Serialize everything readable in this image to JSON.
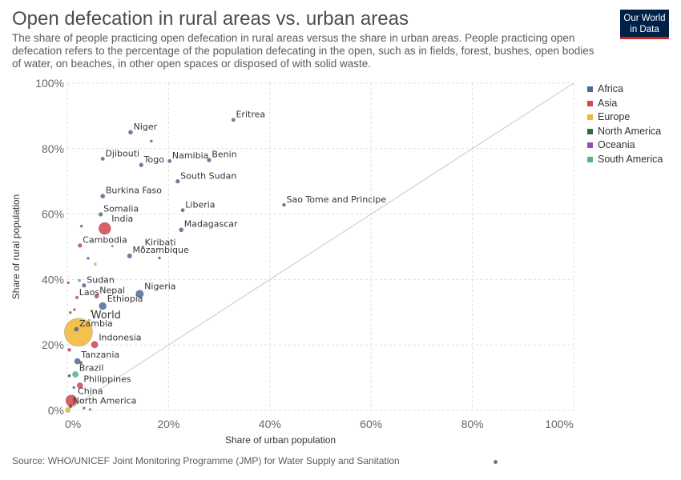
{
  "header": {
    "title": "Open defecation in rural areas vs. urban areas",
    "subtitle": "The share of people practicing open defecation in rural areas versus the share in urban areas. People practicing open defecation refers to the percentage of the population defecating in the open, such as in fields, forest, bushes, open bodies of water, on beaches, in other open spaces or disposed of with solid waste.",
    "logo_line1": "Our World",
    "logo_line2": "in Data"
  },
  "footer": {
    "source": "Source: WHO/UNICEF Joint Monitoring Programme (JMP) for Water Supply and Sanitation"
  },
  "colors": {
    "Africa": "#4c6a9c",
    "Asia": "#d4444e",
    "Europe": "#f2b632",
    "North America": "#2e6b3f",
    "Oceania": "#9e4bb0",
    "South America": "#49b97f",
    "grid": "#dddddd",
    "diagonal": "#c8c8c8"
  },
  "chart_data": {
    "type": "scatter",
    "xlabel": "Share of urban population",
    "ylabel": "Share of rural population",
    "xlim": [
      0,
      100
    ],
    "ylim": [
      0,
      100
    ],
    "x_ticks": [
      "0%",
      "20%",
      "40%",
      "60%",
      "80%",
      "100%"
    ],
    "y_ticks": [
      "0%",
      "20%",
      "40%",
      "60%",
      "80%",
      "100%"
    ],
    "grid": true,
    "legend_position": "right",
    "legend": [
      "Africa",
      "Asia",
      "Europe",
      "North America",
      "Oceania",
      "South America"
    ],
    "points": [
      {
        "label": "Eritrea",
        "region": "Africa",
        "x": 32.8,
        "y": 88.8,
        "size": 2.2
      },
      {
        "label": "Niger",
        "region": "Africa",
        "x": 12.5,
        "y": 85.0,
        "size": 2.6
      },
      {
        "label": "",
        "region": "Africa",
        "x": 16.6,
        "y": 82.3,
        "size": 1.5
      },
      {
        "label": "Djibouti",
        "region": "Africa",
        "x": 7.0,
        "y": 76.9,
        "size": 2.2
      },
      {
        "label": "Togo",
        "region": "Africa",
        "x": 14.6,
        "y": 75.0,
        "size": 2.4
      },
      {
        "label": "Namibia",
        "region": "Africa",
        "x": 20.2,
        "y": 76.2,
        "size": 2.2
      },
      {
        "label": "Benin",
        "region": "Africa",
        "x": 28.0,
        "y": 76.5,
        "size": 2.4
      },
      {
        "label": "South Sudan",
        "region": "Africa",
        "x": 21.8,
        "y": 70.0,
        "size": 2.4
      },
      {
        "label": "Burkina Faso",
        "region": "Africa",
        "x": 7.0,
        "y": 65.5,
        "size": 2.6
      },
      {
        "label": "Sao Tome and Principe",
        "region": "Africa",
        "x": 42.8,
        "y": 62.8,
        "size": 2.0
      },
      {
        "label": "Liberia",
        "region": "Africa",
        "x": 22.8,
        "y": 61.2,
        "size": 2.2
      },
      {
        "label": "Somalia",
        "region": "Africa",
        "x": 6.6,
        "y": 59.9,
        "size": 2.4
      },
      {
        "label": "India",
        "region": "Asia",
        "x": 7.4,
        "y": 55.6,
        "size": 7.5
      },
      {
        "label": "",
        "region": "Africa",
        "x": 2.8,
        "y": 56.3,
        "size": 1.5
      },
      {
        "label": "Madagascar",
        "region": "Africa",
        "x": 22.5,
        "y": 55.2,
        "size": 2.6
      },
      {
        "label": "Cambodia",
        "region": "Asia",
        "x": 2.5,
        "y": 50.4,
        "size": 2.4
      },
      {
        "label": "Kiribati",
        "region": "Oceania",
        "x": 14.9,
        "y": 49.9,
        "size": 1.5
      },
      {
        "label": "",
        "region": "Oceania",
        "x": 8.9,
        "y": 50.2,
        "size": 1.2
      },
      {
        "label": "Mozambique",
        "region": "Africa",
        "x": 12.3,
        "y": 47.2,
        "size": 2.8
      },
      {
        "label": "",
        "region": "Africa",
        "x": 18.2,
        "y": 46.6,
        "size": 1.5
      },
      {
        "label": "",
        "region": "Africa",
        "x": 4.1,
        "y": 46.5,
        "size": 1.5
      },
      {
        "label": "",
        "region": "Europe",
        "x": 5.5,
        "y": 44.7,
        "size": 1.5
      },
      {
        "label": "",
        "region": "Asia",
        "x": 0.2,
        "y": 39.0,
        "size": 1.5
      },
      {
        "label": "Sudan",
        "region": "Africa",
        "x": 3.3,
        "y": 38.2,
        "size": 2.4
      },
      {
        "label": "",
        "region": "South America",
        "x": 2.4,
        "y": 39.7,
        "size": 1.5
      },
      {
        "label": "Nigeria",
        "region": "Africa",
        "x": 14.3,
        "y": 35.6,
        "size": 4.8
      },
      {
        "label": "Laos",
        "region": "Asia",
        "x": 1.9,
        "y": 34.5,
        "size": 1.8
      },
      {
        "label": "Nepal",
        "region": "Asia",
        "x": 5.8,
        "y": 34.9,
        "size": 2.6
      },
      {
        "label": "Ethiopia",
        "region": "Africa",
        "x": 7.0,
        "y": 31.9,
        "size": 4.5
      },
      {
        "label": "",
        "region": "Asia",
        "x": 0.6,
        "y": 29.9,
        "size": 1.5
      },
      {
        "label": "",
        "region": "Asia",
        "x": 1.4,
        "y": 30.8,
        "size": 1.5
      },
      {
        "label": "",
        "region": "Europe",
        "x": 4.8,
        "y": 30.4,
        "size": 1.5
      },
      {
        "label": "World",
        "region": "Europe",
        "x": 4.3,
        "y": 27.5,
        "size": 1.5
      },
      {
        "label": "Zambia",
        "region": "Africa",
        "x": 1.8,
        "y": 24.8,
        "size": 2.6
      },
      {
        "label": "",
        "region": "Europe",
        "x": 2.2,
        "y": 23.9,
        "size": 17.5
      },
      {
        "label": "Indonesia",
        "region": "Asia",
        "x": 5.4,
        "y": 20.1,
        "size": 4.2
      },
      {
        "label": "",
        "region": "Asia",
        "x": 0.4,
        "y": 18.5,
        "size": 2.0
      },
      {
        "label": "Tanzania",
        "region": "Africa",
        "x": 2.0,
        "y": 15.0,
        "size": 3.6
      },
      {
        "label": "",
        "region": "Africa",
        "x": 2.7,
        "y": 14.6,
        "size": 1.8
      },
      {
        "label": "Brazil",
        "region": "South America",
        "x": 1.6,
        "y": 11.0,
        "size": 3.6
      },
      {
        "label": "",
        "region": "North America",
        "x": 0.4,
        "y": 10.6,
        "size": 1.6
      },
      {
        "label": "Philippines",
        "region": "Asia",
        "x": 2.5,
        "y": 7.6,
        "size": 3.6
      },
      {
        "label": "",
        "region": "Africa",
        "x": 1.3,
        "y": 7.0,
        "size": 1.5
      },
      {
        "label": "China",
        "region": "Asia",
        "x": 0.8,
        "y": 3.0,
        "size": 7.0
      },
      {
        "label": "North America",
        "region": "North America",
        "x": 0.6,
        "y": 1.3,
        "size": 2.0
      },
      {
        "label": "",
        "region": "Asia",
        "x": 3.3,
        "y": 0.7,
        "size": 1.5
      },
      {
        "label": "",
        "region": "Europe",
        "x": 0.1,
        "y": 0.1,
        "size": 3.0
      },
      {
        "label": "",
        "region": "Africa",
        "x": 4.5,
        "y": 0.3,
        "size": 1.3
      }
    ]
  }
}
